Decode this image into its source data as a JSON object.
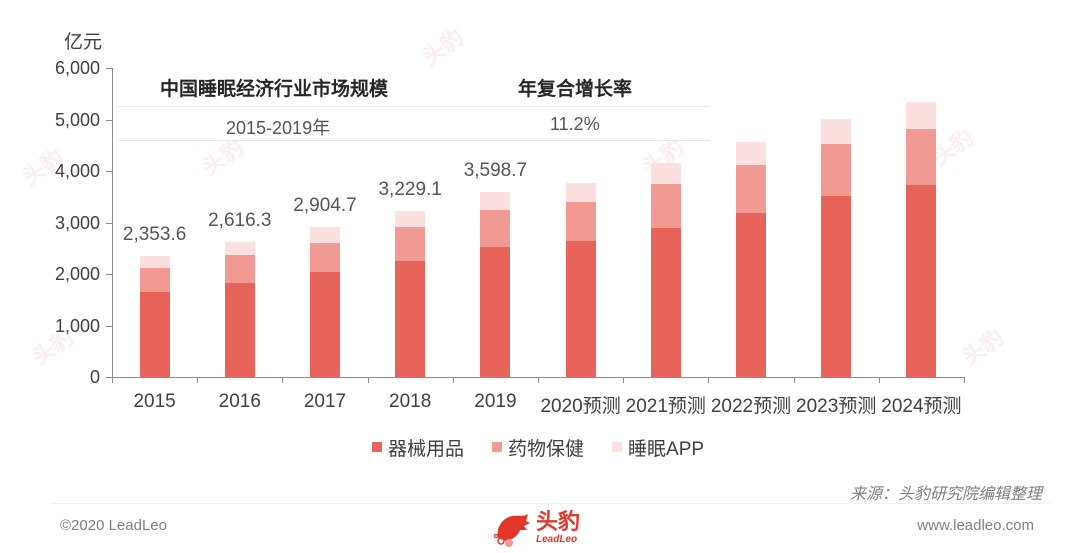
{
  "header": {
    "unit": "亿元"
  },
  "info_table": {
    "col1_header": "中国睡眠经济行业市场规模",
    "col2_header": "年复合增长率",
    "col1_value": "2015-2019年",
    "col2_value": "11.2%"
  },
  "legend": {
    "items": [
      {
        "label": "器械用品",
        "color": "#e8635a"
      },
      {
        "label": "药物保健",
        "color": "#f09a93"
      },
      {
        "label": "睡眠APP",
        "color": "#fbe0df"
      }
    ]
  },
  "source": "来源：头豹研究院编辑整理",
  "footer": {
    "copyright": "©2020 LeadLeo",
    "website": "www.leadleo.com",
    "logo_cn": "头豹",
    "logo_en": "LeadLeo"
  },
  "colors": {
    "segment_1": "#e8635a",
    "segment_2": "#f09a93",
    "segment_3": "#fbe0df",
    "brand": "#e2362b"
  },
  "chart_data": {
    "type": "bar",
    "stacked": true,
    "title": "中国睡眠经济行业市场规模",
    "subtitle": "2015-2019年 年复合增长率 11.2%",
    "xlabel": "",
    "ylabel": "亿元",
    "ylim": [
      0,
      6000
    ],
    "yticks": [
      "0",
      "1,000",
      "2,000",
      "3,000",
      "4,000",
      "5,000",
      "6,000"
    ],
    "grid": false,
    "legend_position": "bottom",
    "categories": [
      "2015",
      "2016",
      "2017",
      "2018",
      "2019",
      "2020预测",
      "2021预测",
      "2022预测",
      "2023预测",
      "2024预测"
    ],
    "series": [
      {
        "name": "器械用品",
        "values": [
          1650,
          1825,
          2039,
          2252,
          2524,
          2641,
          2893,
          3184,
          3515,
          3728
        ]
      },
      {
        "name": "药物保健",
        "values": [
          467,
          544,
          563,
          661,
          719,
          757,
          855,
          933,
          1009,
          1088
        ]
      },
      {
        "name": "睡眠APP",
        "values": [
          237,
          247,
          303,
          316,
          356,
          369,
          407,
          446,
          486,
          524
        ]
      }
    ],
    "totals": [
      2353.6,
      2616.3,
      2904.7,
      3229.1,
      3598.7,
      null,
      null,
      null,
      null,
      null
    ],
    "total_labels": [
      "2,353.6",
      "2,616.3",
      "2,904.7",
      "3,229.1",
      "3,598.7",
      "",
      "",
      "",
      "",
      ""
    ],
    "annotations": [
      {
        "text": "年复合增长率",
        "value": "11.2%",
        "period": "2015-2019年"
      }
    ]
  }
}
